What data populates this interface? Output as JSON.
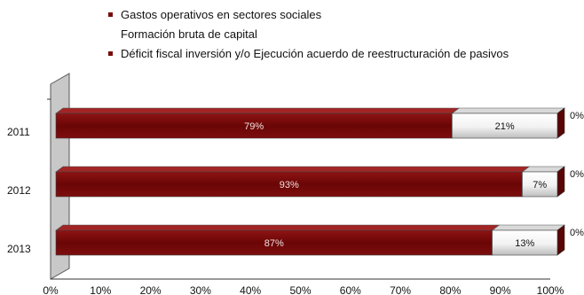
{
  "chart_data": {
    "type": "bar",
    "orientation": "horizontal",
    "stacked": true,
    "categories": [
      "2011",
      "2012",
      "2013"
    ],
    "series": [
      {
        "name": "Gastos operativos en sectores sociales",
        "values": [
          79,
          93,
          87
        ],
        "labels": [
          "79%",
          "93%",
          "87%"
        ],
        "color": "#7a0b0b"
      },
      {
        "name": "Formación bruta de capital",
        "values": [
          21,
          7,
          13
        ],
        "labels": [
          "21%",
          "7%",
          "13%"
        ],
        "color": "#ffffff"
      },
      {
        "name": "Déficit fiscal inversión y/o Ejecución acuerdo de reestructuración de pasivos",
        "values": [
          0,
          0,
          0
        ],
        "labels": [
          "0%",
          "0%",
          "0%"
        ],
        "color": "#7a0b0b"
      }
    ],
    "xticks": [
      "0%",
      "10%",
      "20%",
      "30%",
      "40%",
      "50%",
      "60%",
      "70%",
      "80%",
      "90%",
      "100%"
    ],
    "xlim": [
      0,
      100
    ],
    "legend_position": "top",
    "grid": false,
    "style": "3d"
  }
}
